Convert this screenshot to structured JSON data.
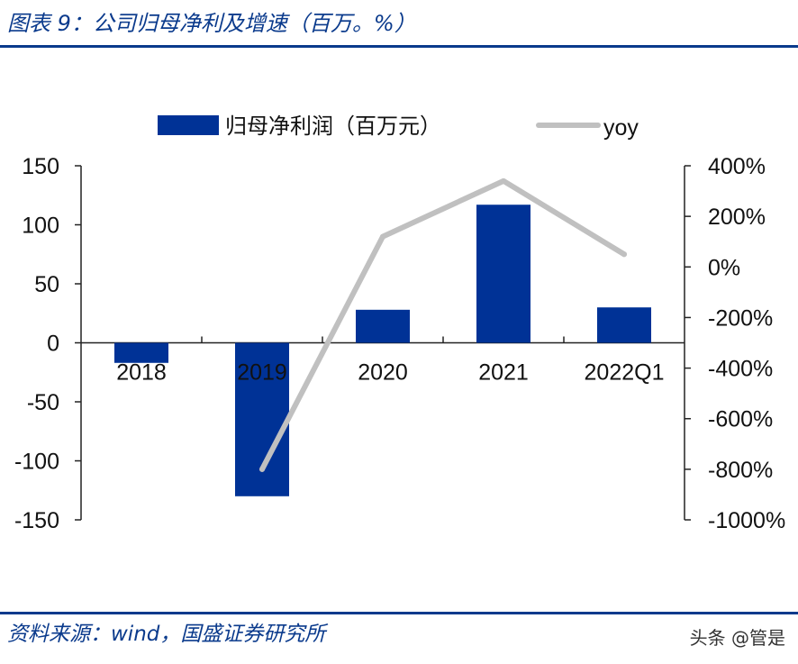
{
  "header": {
    "title": "图表 9：公司归母净利及增速（百万。%）"
  },
  "footer": {
    "source": "资料来源：wind，国盛证券研究所",
    "watermark": "头条 @管是"
  },
  "chart_data": {
    "type": "bar",
    "title": "图表 9：公司归母净利及增速（百万。%）",
    "categories": [
      "2018",
      "2019",
      "2020",
      "2021",
      "2022Q1"
    ],
    "series": [
      {
        "name": "归母净利润（百万元）",
        "type": "bar",
        "axis": "left",
        "color": "#003296",
        "values": [
          -17,
          -130,
          28,
          117,
          30
        ]
      },
      {
        "name": "yoy",
        "type": "line",
        "axis": "right",
        "color": "#c0c0c0",
        "values": [
          null,
          -800,
          120,
          340,
          50
        ]
      }
    ],
    "y_left": {
      "ylim": [
        -150,
        150
      ],
      "ticks": [
        -150,
        -100,
        -50,
        0,
        50,
        100,
        150
      ],
      "tick_labels": [
        "-150",
        "-100",
        "-50",
        "0",
        "50",
        "100",
        "150"
      ]
    },
    "y_right": {
      "ylim": [
        -1000,
        400
      ],
      "ticks": [
        -1000,
        -800,
        -600,
        -400,
        -200,
        0,
        200,
        400
      ],
      "tick_labels": [
        "-1000%",
        "-800%",
        "-600%",
        "-400%",
        "-200%",
        "0%",
        "200%",
        "400%"
      ]
    },
    "legend": {
      "position": "top",
      "labels": [
        "归母净利润（百万元）",
        "yoy"
      ]
    },
    "grid": false
  }
}
